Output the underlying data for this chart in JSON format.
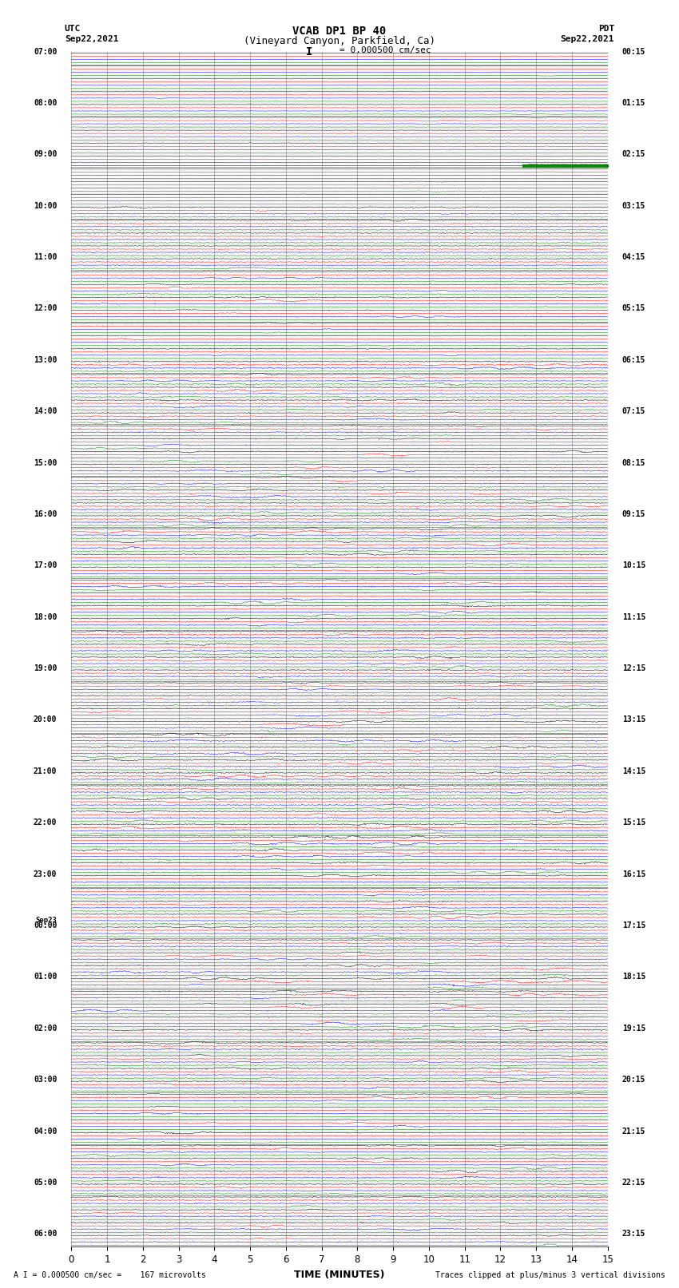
{
  "title_line1": "VCAB DP1 BP 40",
  "title_line2": "(Vineyard Canyon, Parkfield, Ca)",
  "scale_text": "I = 0.000500 cm/sec",
  "footer_left": "A I = 0.000500 cm/sec =    167 microvolts",
  "footer_right": "Traces clipped at plus/minus 3 vertical divisions",
  "utc_label": "UTC",
  "utc_date": "Sep22,2021",
  "pdt_label": "PDT",
  "pdt_date": "Sep22,2021",
  "xlabel": "TIME (MINUTES)",
  "x_max": 15,
  "colors": [
    "black",
    "red",
    "blue",
    "green"
  ],
  "background_color": "white",
  "n_groups": 93,
  "trace_amplitude": 0.42,
  "left_labels": [
    [
      "07:00",
      0
    ],
    [
      "08:00",
      4
    ],
    [
      "09:00",
      8
    ],
    [
      "10:00",
      12
    ],
    [
      "11:00",
      16
    ],
    [
      "12:00",
      20
    ],
    [
      "13:00",
      24
    ],
    [
      "14:00",
      28
    ],
    [
      "15:00",
      32
    ],
    [
      "16:00",
      36
    ],
    [
      "17:00",
      40
    ],
    [
      "18:00",
      44
    ],
    [
      "19:00",
      48
    ],
    [
      "20:00",
      52
    ],
    [
      "21:00",
      56
    ],
    [
      "22:00",
      60
    ],
    [
      "23:00",
      64
    ],
    [
      "Sep23",
      68
    ],
    [
      "00:00",
      68
    ],
    [
      "01:00",
      72
    ],
    [
      "02:00",
      76
    ],
    [
      "03:00",
      80
    ],
    [
      "04:00",
      84
    ],
    [
      "05:00",
      88
    ],
    [
      "06:00",
      92
    ]
  ],
  "right_labels": [
    [
      "00:15",
      0
    ],
    [
      "01:15",
      4
    ],
    [
      "02:15",
      8
    ],
    [
      "03:15",
      12
    ],
    [
      "04:15",
      16
    ],
    [
      "05:15",
      20
    ],
    [
      "06:15",
      24
    ],
    [
      "07:15",
      28
    ],
    [
      "08:15",
      32
    ],
    [
      "09:15",
      36
    ],
    [
      "10:15",
      40
    ],
    [
      "11:15",
      44
    ],
    [
      "12:15",
      48
    ],
    [
      "13:15",
      52
    ],
    [
      "14:15",
      56
    ],
    [
      "15:15",
      60
    ],
    [
      "16:15",
      64
    ],
    [
      "17:15",
      68
    ],
    [
      "18:15",
      72
    ],
    [
      "19:15",
      76
    ],
    [
      "20:15",
      80
    ],
    [
      "21:15",
      84
    ],
    [
      "22:15",
      88
    ],
    [
      "23:15",
      92
    ]
  ]
}
